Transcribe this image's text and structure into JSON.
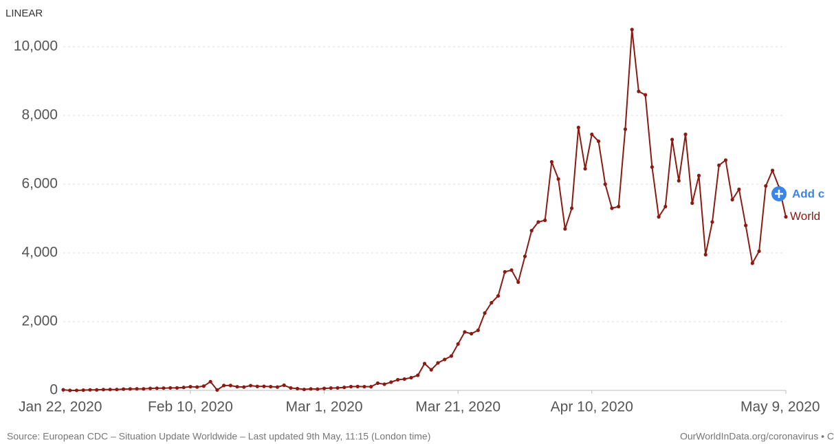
{
  "chart_data": {
    "type": "line",
    "scale_toggle": "LINEAR",
    "add_button": "Add c",
    "source": "Source: European CDC – Situation Update Worldwide – Last updated 9th May, 11:15 (London time)",
    "credit": "OurWorldInData.org/coronavirus • C",
    "x": [
      "2020-01-22",
      "2020-01-23",
      "2020-01-24",
      "2020-01-25",
      "2020-01-26",
      "2020-01-27",
      "2020-01-28",
      "2020-01-29",
      "2020-01-30",
      "2020-01-31",
      "2020-02-01",
      "2020-02-02",
      "2020-02-03",
      "2020-02-04",
      "2020-02-05",
      "2020-02-06",
      "2020-02-07",
      "2020-02-08",
      "2020-02-09",
      "2020-02-10",
      "2020-02-11",
      "2020-02-12",
      "2020-02-13",
      "2020-02-14",
      "2020-02-15",
      "2020-02-16",
      "2020-02-17",
      "2020-02-18",
      "2020-02-19",
      "2020-02-20",
      "2020-02-21",
      "2020-02-22",
      "2020-02-23",
      "2020-02-24",
      "2020-02-25",
      "2020-02-26",
      "2020-02-27",
      "2020-02-28",
      "2020-02-29",
      "2020-03-01",
      "2020-03-02",
      "2020-03-03",
      "2020-03-04",
      "2020-03-05",
      "2020-03-06",
      "2020-03-07",
      "2020-03-08",
      "2020-03-09",
      "2020-03-10",
      "2020-03-11",
      "2020-03-12",
      "2020-03-13",
      "2020-03-14",
      "2020-03-15",
      "2020-03-16",
      "2020-03-17",
      "2020-03-18",
      "2020-03-19",
      "2020-03-20",
      "2020-03-21",
      "2020-03-22",
      "2020-03-23",
      "2020-03-24",
      "2020-03-25",
      "2020-03-26",
      "2020-03-27",
      "2020-03-28",
      "2020-03-29",
      "2020-03-30",
      "2020-03-31",
      "2020-04-01",
      "2020-04-02",
      "2020-04-03",
      "2020-04-04",
      "2020-04-05",
      "2020-04-06",
      "2020-04-07",
      "2020-04-08",
      "2020-04-09",
      "2020-04-10",
      "2020-04-11",
      "2020-04-12",
      "2020-04-13",
      "2020-04-14",
      "2020-04-15",
      "2020-04-16",
      "2020-04-17",
      "2020-04-18",
      "2020-04-19",
      "2020-04-20",
      "2020-04-21",
      "2020-04-22",
      "2020-04-23",
      "2020-04-24",
      "2020-04-25",
      "2020-04-26",
      "2020-04-27",
      "2020-04-28",
      "2020-04-29",
      "2020-04-30",
      "2020-05-01",
      "2020-05-02",
      "2020-05-03",
      "2020-05-04",
      "2020-05-05",
      "2020-05-06",
      "2020-05-07",
      "2020-05-08",
      "2020-05-09"
    ],
    "series": [
      {
        "name": "World",
        "color": "#8a1a12",
        "values": [
          17,
          0,
          1,
          8,
          16,
          15,
          24,
          26,
          26,
          38,
          43,
          46,
          45,
          57,
          64,
          66,
          72,
          73,
          86,
          108,
          97,
          125,
          254,
          13,
          143,
          142,
          106,
          98,
          139,
          115,
          118,
          109,
          97,
          150,
          71,
          52,
          29,
          44,
          37,
          58,
          67,
          73,
          87,
          110,
          112,
          109,
          107,
          210,
          180,
          240,
          310,
          330,
          370,
          440,
          780,
          600,
          800,
          900,
          1000,
          1350,
          1700,
          1650,
          1750,
          2250,
          2550,
          2750,
          3450,
          3500,
          3150,
          3900,
          4650,
          4900,
          4950,
          6650,
          6150,
          4700,
          5300,
          7650,
          6450,
          7450,
          7250,
          6000,
          5300,
          5350,
          7600,
          10500,
          8700,
          8600,
          6500,
          5050,
          5350,
          7300,
          6100,
          7450,
          5450,
          6250,
          3950,
          4900,
          6550,
          6700,
          5550,
          5850,
          4800,
          3700,
          4050,
          5950,
          6400,
          5900,
          5050
        ]
      }
    ],
    "xlim": [
      "2020-01-22",
      "2020-05-09"
    ],
    "xticks": [
      {
        "value": "2020-01-22",
        "label": "Jan 22, 2020"
      },
      {
        "value": "2020-02-10",
        "label": "Feb 10, 2020"
      },
      {
        "value": "2020-03-01",
        "label": "Mar 1, 2020"
      },
      {
        "value": "2020-03-21",
        "label": "Mar 21, 2020"
      },
      {
        "value": "2020-04-10",
        "label": "Apr 10, 2020"
      },
      {
        "value": "2020-05-09",
        "label": "May 9, 2020"
      }
    ],
    "ylim": [
      0,
      10500
    ],
    "yticks": [
      0,
      {
        "value": 2000,
        "label": "2,000"
      },
      {
        "value": 4000,
        "label": "4,000"
      },
      {
        "value": 6000,
        "label": "6,000"
      },
      {
        "value": 8000,
        "label": "8,000"
      },
      {
        "value": 10000,
        "label": "10,000"
      }
    ],
    "grid": true
  }
}
